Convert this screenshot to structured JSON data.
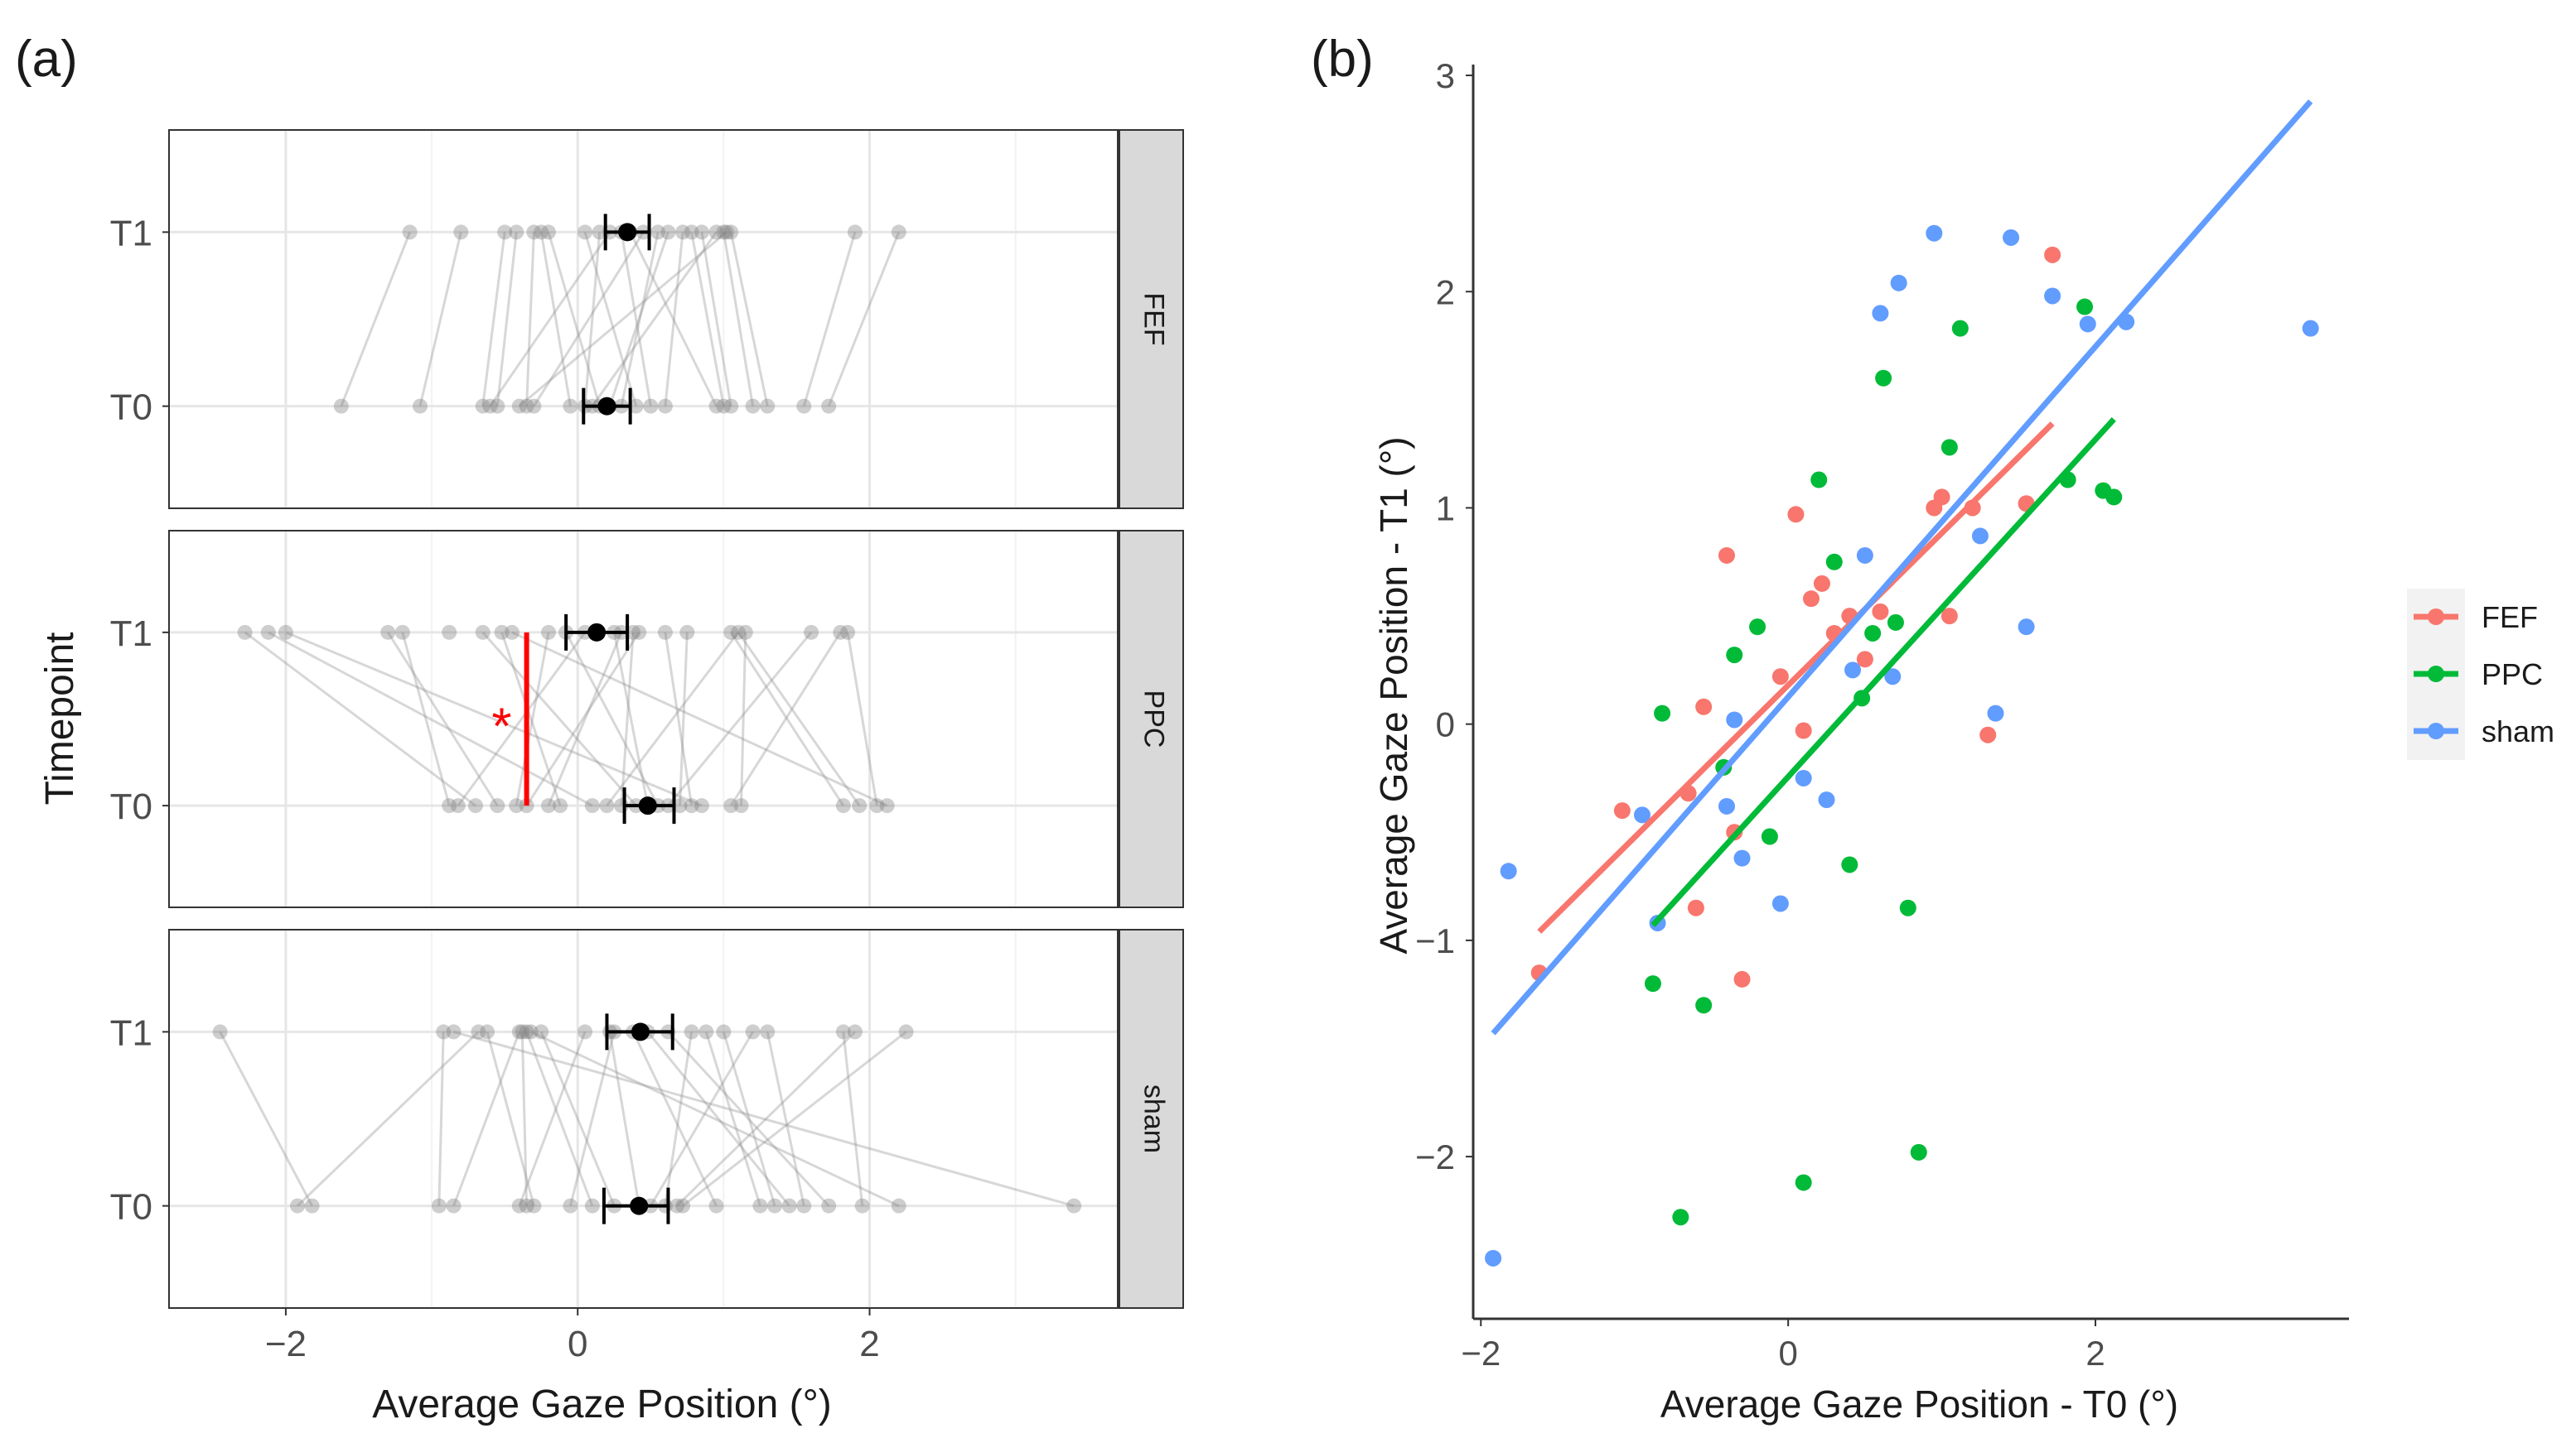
{
  "figure": {
    "panel_a_label": "(a)",
    "panel_b_label": "(b)"
  },
  "colors": {
    "FEF": "#F8766D",
    "PPC": "#00BA38",
    "sham": "#619CFF",
    "point_gray": "#7f7f7f",
    "strip": "#d9d9d9",
    "significance": "#ff0000"
  },
  "chart_data": [
    {
      "type": "scatter",
      "title": "",
      "xlabel": "Average Gaze Position (°)",
      "ylabel": "Timepoint",
      "xlim": [
        -2.8,
        3.7
      ],
      "x_ticks": [
        -2,
        0,
        2
      ],
      "y_categories": [
        "T0",
        "T1"
      ],
      "facets": [
        {
          "name": "FEF",
          "t0": [
            -1.62,
            -1.08,
            -0.65,
            -0.6,
            -0.55,
            -0.4,
            -0.35,
            -0.3,
            -0.05,
            0.05,
            0.1,
            0.15,
            0.22,
            0.3,
            0.4,
            0.5,
            0.6,
            0.95,
            1.0,
            1.05,
            1.2,
            1.3,
            1.55,
            1.72
          ],
          "t1": [
            -1.15,
            -0.8,
            -0.5,
            -0.42,
            -0.3,
            -0.25,
            -0.2,
            0.05,
            0.15,
            0.22,
            0.3,
            0.36,
            0.45,
            0.55,
            0.62,
            0.72,
            0.78,
            0.85,
            0.95,
            1.0,
            1.02,
            1.05,
            1.9,
            2.2
          ],
          "pairs": [
            [
              -1.62,
              -1.15
            ],
            [
              -1.08,
              -0.8
            ],
            [
              -0.65,
              -0.5
            ],
            [
              -0.6,
              0.22
            ],
            [
              -0.55,
              -0.42
            ],
            [
              -0.4,
              1.02
            ],
            [
              -0.35,
              -0.3
            ],
            [
              -0.3,
              0.45
            ],
            [
              -0.05,
              -0.25
            ],
            [
              0.05,
              0.15
            ],
            [
              0.1,
              0.95
            ],
            [
              0.15,
              -0.2
            ],
            [
              0.22,
              0.62
            ],
            [
              0.3,
              0.55
            ],
            [
              0.4,
              0.05
            ],
            [
              0.5,
              0.3
            ],
            [
              0.6,
              0.72
            ],
            [
              0.95,
              0.36
            ],
            [
              1.0,
              0.78
            ],
            [
              1.05,
              0.85
            ],
            [
              1.2,
              1.0
            ],
            [
              1.3,
              1.05
            ],
            [
              1.55,
              1.9
            ],
            [
              1.72,
              2.2
            ]
          ],
          "mean_t0": 0.2,
          "ci_t0": [
            0.04,
            0.36
          ],
          "mean_t1": 0.34,
          "ci_t1": [
            0.19,
            0.49
          ]
        },
        {
          "name": "PPC",
          "t0": [
            -0.88,
            -0.82,
            -0.7,
            -0.55,
            -0.42,
            -0.35,
            -0.2,
            -0.12,
            0.1,
            0.2,
            0.3,
            0.4,
            0.48,
            0.55,
            0.62,
            0.7,
            0.78,
            0.85,
            1.05,
            1.12,
            1.82,
            1.93,
            2.05,
            2.12
          ],
          "t1": [
            -2.28,
            -2.12,
            -2.0,
            -1.3,
            -1.2,
            -0.88,
            -0.65,
            -0.52,
            -0.45,
            -0.2,
            -0.08,
            0.05,
            0.25,
            0.3,
            0.38,
            0.42,
            0.6,
            0.75,
            1.05,
            1.1,
            1.15,
            1.6,
            1.8,
            1.85
          ],
          "pairs": [
            [
              -0.88,
              -1.2
            ],
            [
              -0.82,
              0.05
            ],
            [
              -0.7,
              -2.28
            ],
            [
              -0.55,
              -1.3
            ],
            [
              -0.42,
              -0.2
            ],
            [
              -0.35,
              0.42
            ],
            [
              -0.2,
              0.3
            ],
            [
              -0.12,
              -0.52
            ],
            [
              0.1,
              -2.12
            ],
            [
              0.2,
              1.1
            ],
            [
              0.3,
              0.38
            ],
            [
              0.4,
              -0.65
            ],
            [
              0.48,
              0.25
            ],
            [
              0.55,
              -0.08
            ],
            [
              0.62,
              1.6
            ],
            [
              0.7,
              0.75
            ],
            [
              0.78,
              0.6
            ],
            [
              0.85,
              -2.0
            ],
            [
              1.05,
              1.8
            ],
            [
              1.12,
              1.15
            ],
            [
              1.82,
              1.05
            ],
            [
              1.93,
              1.1
            ],
            [
              2.05,
              1.85
            ],
            [
              2.12,
              -0.45
            ]
          ],
          "mean_t0": 0.48,
          "ci_t0": [
            0.32,
            0.66
          ],
          "mean_t1": 0.13,
          "ci_t1": [
            -0.08,
            0.34
          ],
          "significance_marker": "*"
        },
        {
          "name": "sham",
          "t0": [
            -1.92,
            -1.82,
            -0.95,
            -0.85,
            -0.4,
            -0.35,
            -0.3,
            -0.05,
            0.1,
            0.25,
            0.42,
            0.5,
            0.6,
            0.68,
            0.72,
            0.95,
            1.25,
            1.35,
            1.45,
            1.55,
            1.72,
            1.95,
            2.2,
            3.4
          ],
          "t1": [
            -2.45,
            -0.92,
            -0.85,
            -0.68,
            -0.62,
            -0.4,
            -0.38,
            -0.35,
            -0.32,
            -0.25,
            0.05,
            0.22,
            0.25,
            0.38,
            0.48,
            0.62,
            0.78,
            0.88,
            1.0,
            1.2,
            1.3,
            1.82,
            1.9,
            2.25
          ],
          "pairs": [
            [
              -1.92,
              -0.68
            ],
            [
              -1.82,
              -2.45
            ],
            [
              -0.95,
              -0.92
            ],
            [
              -0.85,
              -0.4
            ],
            [
              -0.4,
              0.05
            ],
            [
              -0.35,
              -0.38
            ],
            [
              -0.3,
              -0.62
            ],
            [
              -0.05,
              0.25
            ],
            [
              0.1,
              -0.35
            ],
            [
              0.25,
              -0.25
            ],
            [
              0.42,
              0.22
            ],
            [
              0.5,
              1.2
            ],
            [
              0.6,
              0.78
            ],
            [
              0.68,
              1.9
            ],
            [
              0.72,
              2.25
            ],
            [
              0.95,
              0.38
            ],
            [
              1.25,
              0.88
            ],
            [
              1.35,
              1.0
            ],
            [
              1.45,
              0.48
            ],
            [
              1.55,
              1.3
            ],
            [
              1.72,
              0.62
            ],
            [
              1.95,
              1.82
            ],
            [
              2.2,
              -0.32
            ],
            [
              3.4,
              -0.85
            ]
          ],
          "mean_t0": 0.42,
          "ci_t0": [
            0.18,
            0.62
          ],
          "mean_t1": 0.43,
          "ci_t1": [
            0.2,
            0.65
          ]
        }
      ]
    },
    {
      "type": "scatter",
      "title": "",
      "xlabel": "Average Gaze Position - T0 (°)",
      "ylabel": "Average Gaze Position - T1 (°)",
      "xlim": [
        -2.05,
        3.65
      ],
      "ylim": [
        -2.75,
        3.05
      ],
      "x_ticks": [
        -2,
        0,
        2
      ],
      "y_ticks": [
        -2,
        -1,
        0,
        1,
        2,
        3
      ],
      "legend_position": "right",
      "series": [
        {
          "name": "FEF",
          "x": [
            -1.62,
            -1.08,
            -0.65,
            -0.6,
            -0.55,
            -0.4,
            -0.35,
            -0.3,
            -0.05,
            0.05,
            0.1,
            0.15,
            0.22,
            0.3,
            0.4,
            0.5,
            0.6,
            0.95,
            1.0,
            1.05,
            1.2,
            1.3,
            1.55,
            1.72
          ],
          "y": [
            -1.15,
            -0.4,
            -0.32,
            -0.85,
            0.08,
            0.78,
            -0.5,
            -1.18,
            0.22,
            0.97,
            -0.03,
            0.58,
            0.65,
            0.42,
            0.5,
            0.3,
            0.52,
            1.0,
            1.05,
            0.5,
            1.0,
            -0.05,
            1.02,
            2.17
          ],
          "fit": {
            "x": [
              -1.62,
              1.72
            ],
            "y": [
              -0.96,
              1.39
            ]
          }
        },
        {
          "name": "PPC",
          "x": [
            -0.88,
            -0.82,
            -0.7,
            -0.55,
            -0.42,
            -0.35,
            -0.2,
            -0.12,
            0.1,
            0.2,
            0.3,
            0.4,
            0.48,
            0.55,
            0.62,
            0.7,
            0.78,
            0.85,
            1.05,
            1.12,
            1.82,
            1.93,
            2.05,
            2.12
          ],
          "y": [
            -1.2,
            0.05,
            -2.28,
            -1.3,
            -0.2,
            0.32,
            0.45,
            -0.52,
            -2.12,
            1.13,
            0.75,
            -0.65,
            0.12,
            0.42,
            1.6,
            0.47,
            -0.85,
            -1.98,
            1.28,
            1.83,
            1.13,
            1.93,
            1.08,
            1.05
          ],
          "fit": {
            "x": [
              -0.88,
              2.12
            ],
            "y": [
              -0.93,
              1.41
            ]
          }
        },
        {
          "name": "sham",
          "x": [
            -1.92,
            -1.82,
            -0.95,
            -0.85,
            -0.4,
            -0.35,
            -0.3,
            -0.05,
            0.1,
            0.25,
            0.42,
            0.5,
            0.6,
            0.68,
            0.72,
            0.95,
            1.25,
            1.35,
            1.45,
            1.55,
            1.72,
            1.95,
            2.2,
            3.4
          ],
          "y": [
            -2.47,
            -0.68,
            -0.42,
            -0.92,
            -0.38,
            0.02,
            -0.62,
            -0.83,
            -0.25,
            -0.35,
            0.25,
            0.78,
            1.9,
            0.22,
            2.04,
            2.27,
            0.87,
            0.05,
            2.25,
            0.45,
            1.98,
            1.85,
            1.86,
            1.83
          ],
          "fit": {
            "x": [
              -1.92,
              3.4
            ],
            "y": [
              -1.43,
              2.88
            ]
          }
        }
      ]
    }
  ]
}
